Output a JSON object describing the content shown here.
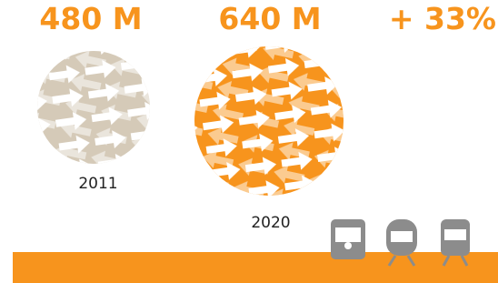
{
  "stats": [
    {
      "value": "480 M",
      "year": "2011"
    },
    {
      "value": "640 M",
      "year": "2020"
    }
  ],
  "change": "+ 33%"
}
